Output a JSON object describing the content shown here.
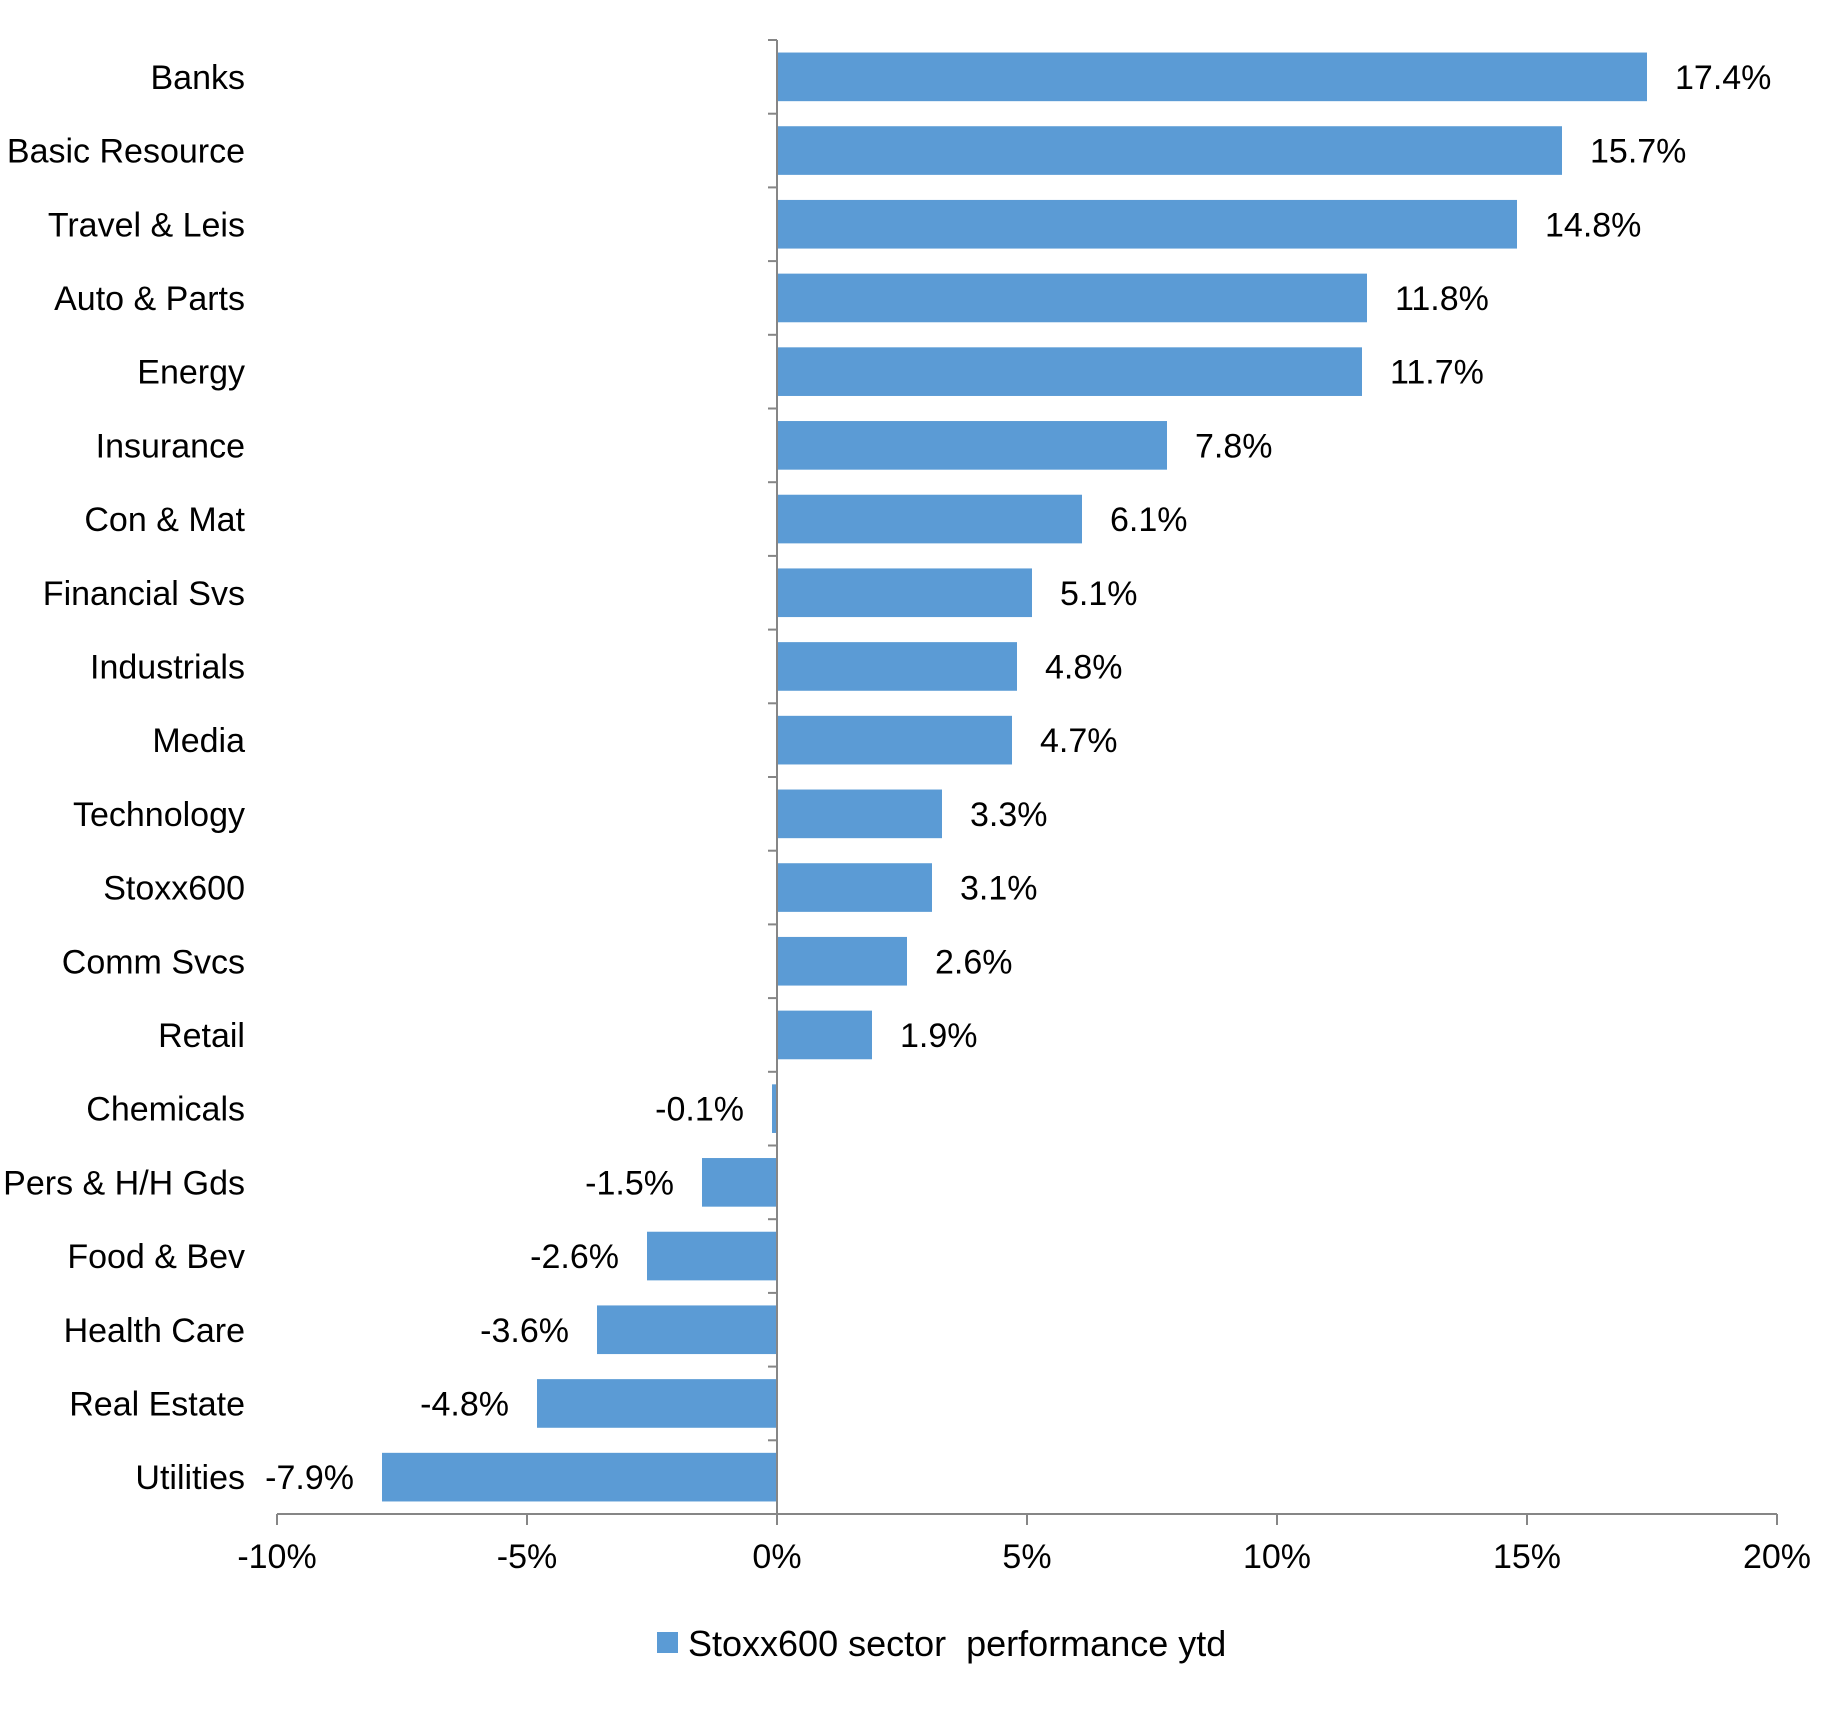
{
  "chart_data": {
    "type": "bar",
    "orientation": "horizontal",
    "categories": [
      "Banks",
      "Basic Resource",
      "Travel & Leis",
      "Auto & Parts",
      "Energy",
      "Insurance",
      "Con & Mat",
      "Financial Svs",
      "Industrials",
      "Media",
      "Technology",
      "Stoxx600",
      "Comm Svcs",
      "Retail",
      "Chemicals",
      "Pers & H/H Gds",
      "Food & Bev",
      "Health Care",
      "Real Estate",
      "Utilities"
    ],
    "series": [
      {
        "name": "Stoxx600 sector  performance ytd",
        "color": "#5B9BD5",
        "values": [
          17.4,
          15.7,
          14.8,
          11.8,
          11.7,
          7.8,
          6.1,
          5.1,
          4.8,
          4.7,
          3.3,
          3.1,
          2.6,
          1.9,
          -0.1,
          -1.5,
          -2.6,
          -3.6,
          -4.8,
          -7.9
        ],
        "data_labels": [
          "17.4%",
          "15.7%",
          "14.8%",
          "11.8%",
          "11.7%",
          "7.8%",
          "6.1%",
          "5.1%",
          "4.8%",
          "4.7%",
          "3.3%",
          "3.1%",
          "2.6%",
          "1.9%",
          "-0.1%",
          "-1.5%",
          "-2.6%",
          "-3.6%",
          "-4.8%",
          "-7.9%"
        ]
      }
    ],
    "xlim": [
      -10,
      20
    ],
    "xticks": [
      -10,
      -5,
      0,
      5,
      10,
      15,
      20
    ],
    "xtick_labels": [
      "-10%",
      "-5%",
      "0%",
      "5%",
      "10%",
      "15%",
      "20%"
    ],
    "title": "",
    "xlabel": "",
    "ylabel": "",
    "grid": false,
    "legend_position": "bottom"
  }
}
